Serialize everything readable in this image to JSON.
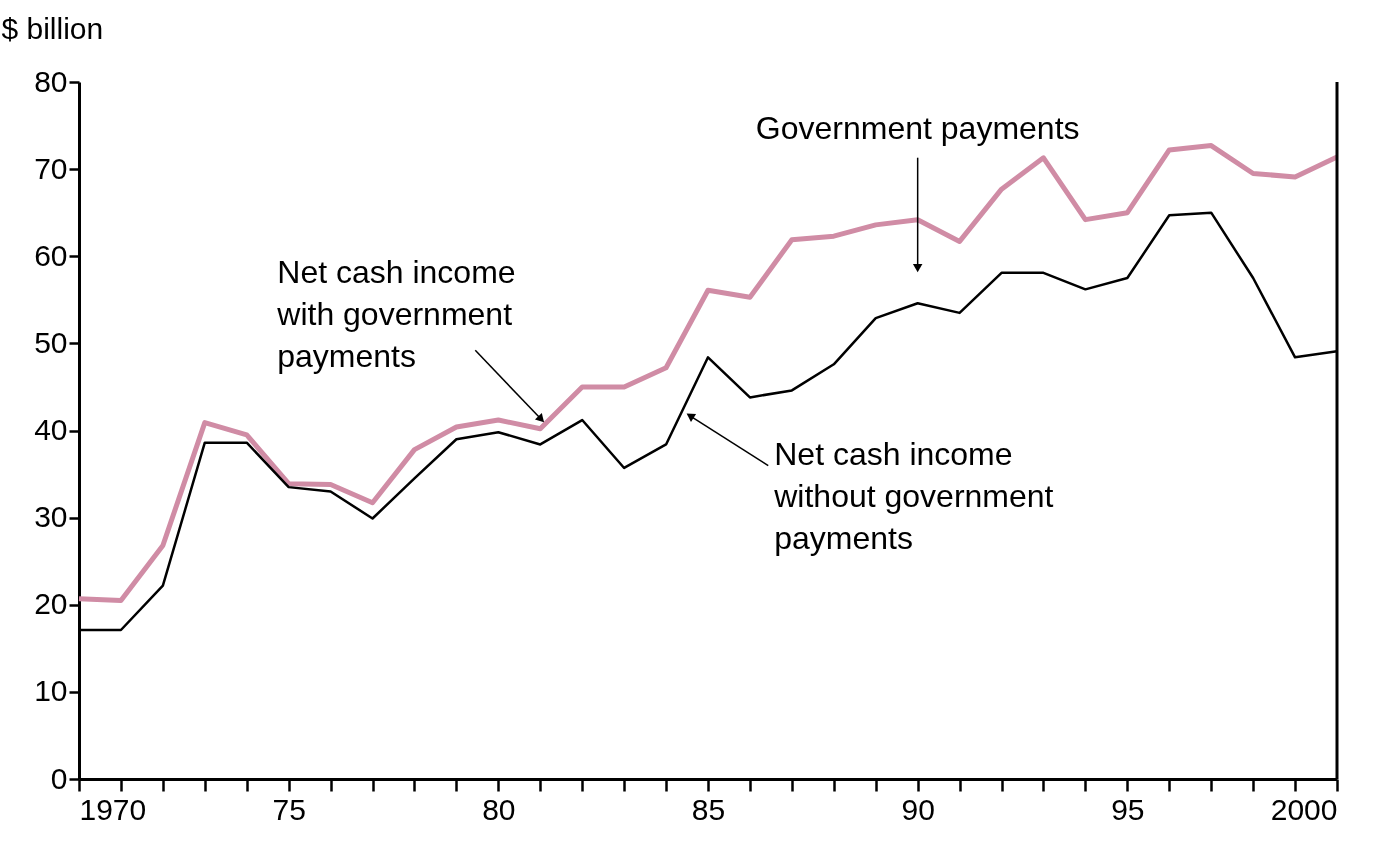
{
  "chart_data": {
    "type": "line",
    "ylabel": "$ billion",
    "x": [
      1970,
      1971,
      1972,
      1973,
      1974,
      1975,
      1976,
      1977,
      1978,
      1979,
      1980,
      1981,
      1982,
      1983,
      1984,
      1985,
      1986,
      1987,
      1988,
      1989,
      1990,
      1991,
      1992,
      1993,
      1994,
      1995,
      1996,
      1997,
      1998,
      1999,
      2000
    ],
    "series": [
      {
        "color": "#d08ca5",
        "values": [
          20.7,
          20.5,
          26.8,
          40.9,
          39.5,
          33.9,
          33.8,
          31.7,
          37.8,
          40.4,
          41.2,
          40.2,
          45.0,
          45.0,
          47.2,
          56.1,
          55.3,
          61.9,
          62.3,
          63.6,
          64.2,
          61.7,
          67.7,
          71.3,
          64.2,
          65.0,
          72.2,
          72.7,
          69.5,
          69.1,
          71.4
        ]
      },
      {
        "color": "#000000",
        "values": [
          17.1,
          17.1,
          22.2,
          38.6,
          38.6,
          33.5,
          33.0,
          29.9,
          34.5,
          39.0,
          39.8,
          38.4,
          41.2,
          35.7,
          38.4,
          48.4,
          43.8,
          44.6,
          47.6,
          52.9,
          54.6,
          53.5,
          58.1,
          58.1,
          56.2,
          57.5,
          64.7,
          65.0,
          57.5,
          48.4,
          49.1
        ]
      }
    ],
    "xlim": [
      1970,
      2000
    ],
    "xticks": [
      {
        "value": 1970,
        "label": "1970"
      },
      {
        "value": 1971,
        "label": null
      },
      {
        "value": 1972,
        "label": null
      },
      {
        "value": 1973,
        "label": null
      },
      {
        "value": 1974,
        "label": null
      },
      {
        "value": 1975,
        "label": "75"
      },
      {
        "value": 1976,
        "label": null
      },
      {
        "value": 1977,
        "label": null
      },
      {
        "value": 1978,
        "label": null
      },
      {
        "value": 1979,
        "label": null
      },
      {
        "value": 1980,
        "label": "80"
      },
      {
        "value": 1981,
        "label": null
      },
      {
        "value": 1982,
        "label": null
      },
      {
        "value": 1983,
        "label": null
      },
      {
        "value": 1984,
        "label": null
      },
      {
        "value": 1985,
        "label": "85"
      },
      {
        "value": 1986,
        "label": null
      },
      {
        "value": 1987,
        "label": null
      },
      {
        "value": 1988,
        "label": null
      },
      {
        "value": 1989,
        "label": null
      },
      {
        "value": 1990,
        "label": "90"
      },
      {
        "value": 1991,
        "label": null
      },
      {
        "value": 1992,
        "label": null
      },
      {
        "value": 1993,
        "label": null
      },
      {
        "value": 1994,
        "label": null
      },
      {
        "value": 1995,
        "label": "95"
      },
      {
        "value": 1996,
        "label": null
      },
      {
        "value": 1997,
        "label": null
      },
      {
        "value": 1998,
        "label": null
      },
      {
        "value": 1999,
        "label": null
      },
      {
        "value": 2000,
        "label": "2000"
      }
    ],
    "ylim": [
      0,
      80
    ],
    "yticks": [
      0,
      10,
      20,
      30,
      40,
      50,
      60,
      70,
      80
    ],
    "marker": "none",
    "line_style": "solid",
    "annotations": [
      {
        "text": "Government payments",
        "x": 1990,
        "y": 58.8
      },
      {
        "text": "Net cash income\nwith government\npayments",
        "x": 1981,
        "y": 41.4
      },
      {
        "text": "Net cash income\nwithout government\npayments",
        "x": 1984.6,
        "y": 41.6
      }
    ]
  }
}
